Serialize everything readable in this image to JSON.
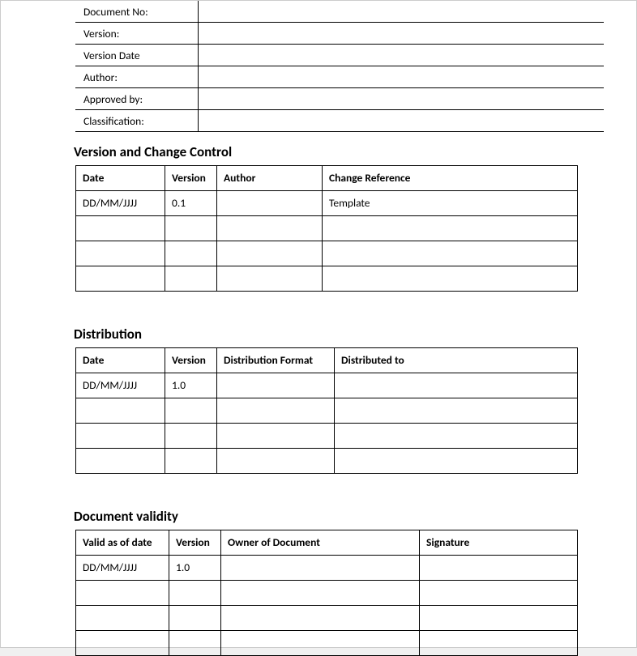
{
  "meta": {
    "rows": [
      {
        "label": "Document No:",
        "value": ""
      },
      {
        "label": "Version:",
        "value": ""
      },
      {
        "label": "Version Date",
        "value": ""
      },
      {
        "label": "Author:",
        "value": ""
      },
      {
        "label": "Approved by:",
        "value": ""
      },
      {
        "label": "Classification:",
        "value": ""
      }
    ]
  },
  "version_control": {
    "title": "Version and Change Control",
    "columns": [
      "Date",
      "Version",
      "Author",
      "Change Reference"
    ],
    "col_widths": [
      "110px",
      "64px",
      "130px",
      "auto"
    ],
    "rows": [
      [
        "DD/MM/JJJJ",
        "0.1",
        "",
        "Template"
      ],
      [
        "",
        "",
        "",
        ""
      ],
      [
        "",
        "",
        "",
        ""
      ],
      [
        "",
        "",
        "",
        ""
      ]
    ]
  },
  "distribution": {
    "title": "Distribution",
    "columns": [
      "Date",
      "Version",
      "Distribution Format",
      "Distributed to"
    ],
    "col_widths": [
      "110px",
      "64px",
      "145px",
      "auto"
    ],
    "rows": [
      [
        "DD/MM/JJJJ",
        "1.0",
        "",
        ""
      ],
      [
        "",
        "",
        "",
        ""
      ],
      [
        "",
        "",
        "",
        ""
      ],
      [
        "",
        "",
        "",
        ""
      ]
    ]
  },
  "validity": {
    "title": "Document validity",
    "columns": [
      "Valid as of date",
      "Version",
      "Owner of Document",
      "Signature"
    ],
    "col_widths": [
      "115px",
      "64px",
      "245px",
      "auto"
    ],
    "rows": [
      [
        "DD/MM/JJJJ",
        "1.0",
        "",
        ""
      ],
      [
        "",
        "",
        "",
        ""
      ],
      [
        "",
        "",
        "",
        ""
      ],
      [
        "",
        "",
        "",
        ""
      ]
    ]
  },
  "styling": {
    "background_color": "#ffffff",
    "border_color": "#000000",
    "font_family": "Calibri, Arial, sans-serif",
    "title_fontsize": 17,
    "cell_fontsize": 13.5
  }
}
